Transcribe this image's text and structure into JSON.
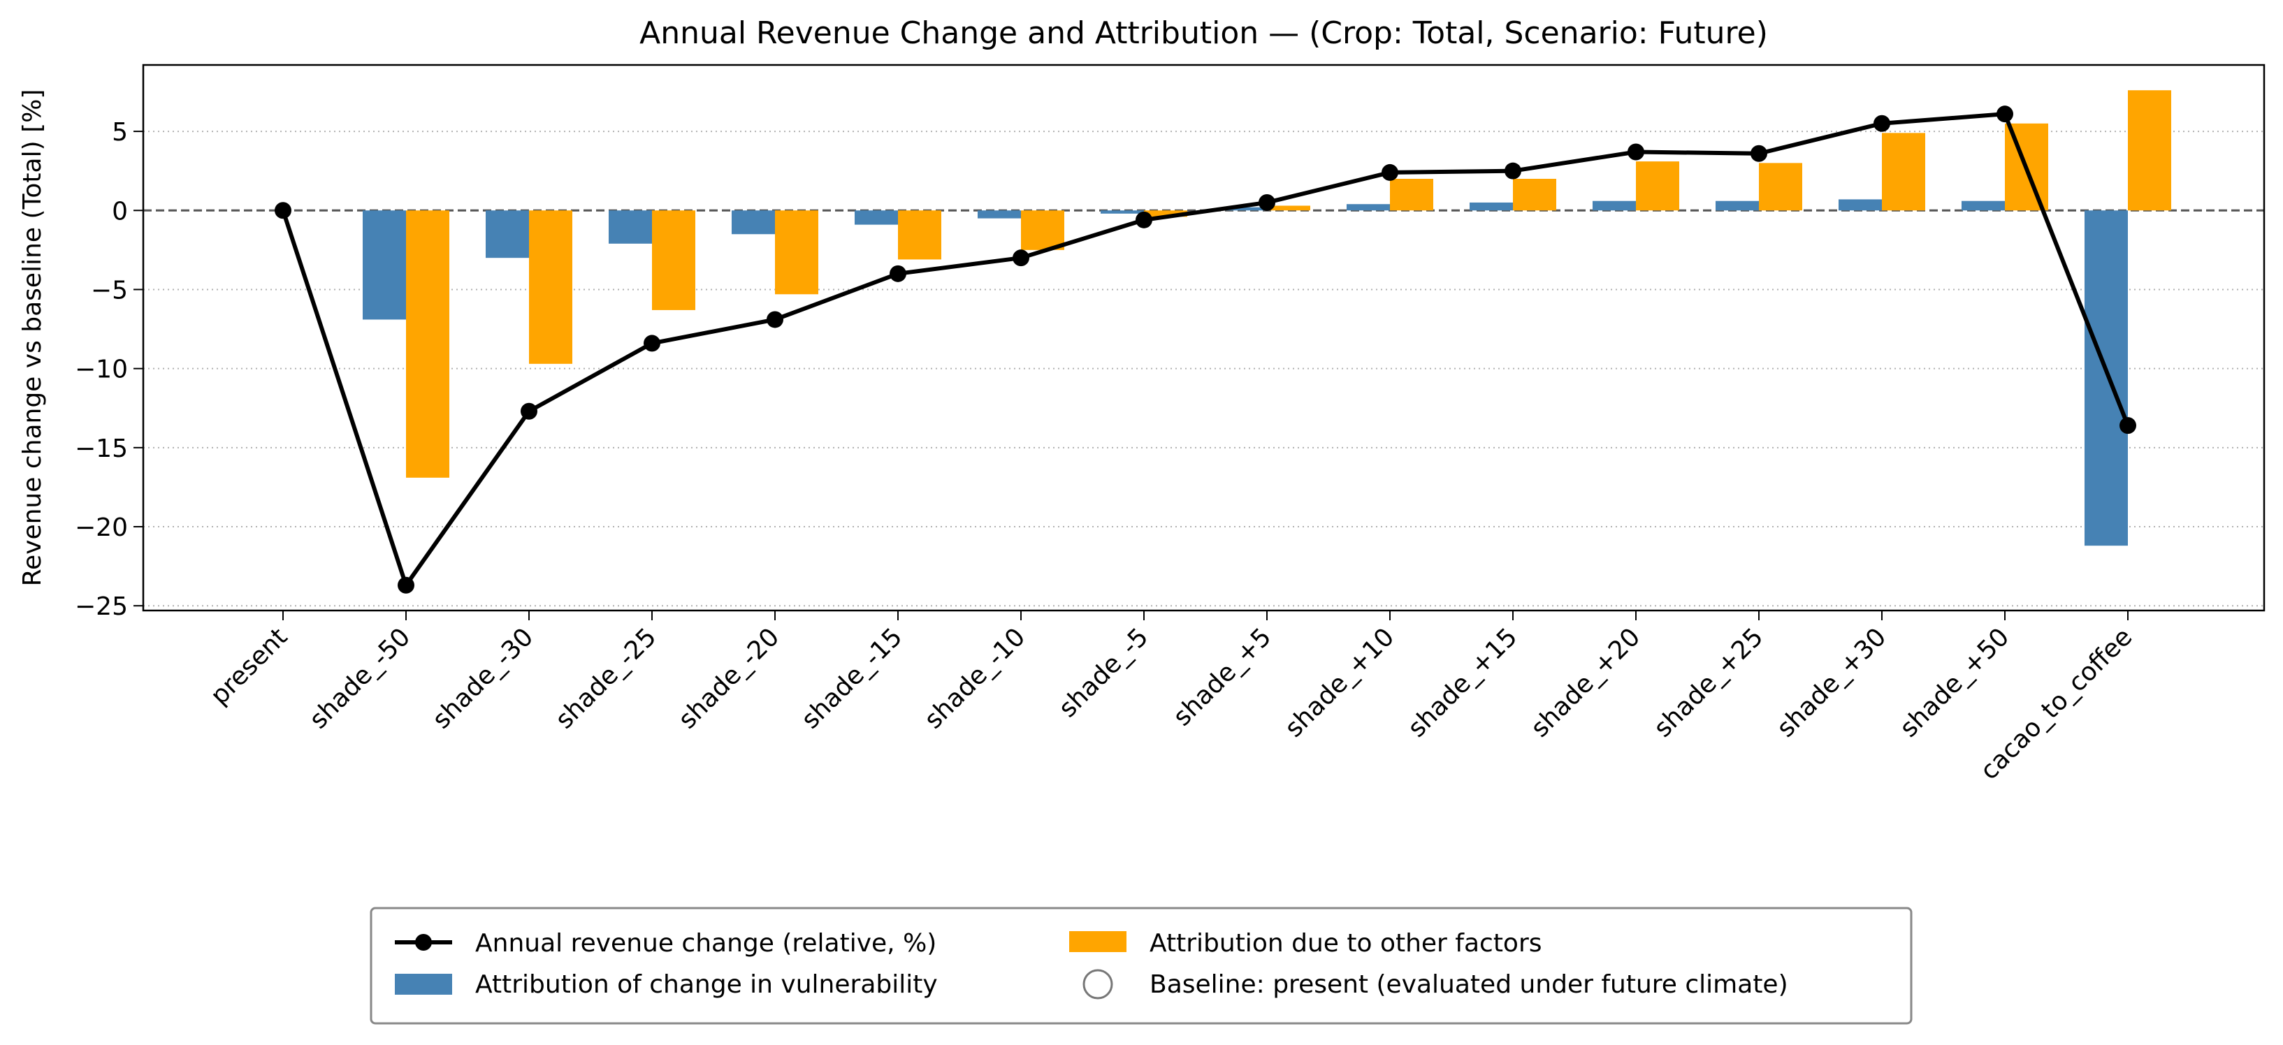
{
  "chart_data": {
    "type": "bar",
    "title": "Annual Revenue Change and Attribution — (Crop: Total, Scenario: Future)",
    "xlabel": "",
    "ylabel": "Revenue change vs baseline (Total) [%]",
    "ylim": [
      -25.3,
      9.2
    ],
    "yticks": [
      5,
      0,
      -5,
      -10,
      -15,
      -20,
      -25
    ],
    "grid": "y-dotted",
    "zero_line": "dashed",
    "legend_position": "below",
    "categories": [
      "present",
      "shade_-50",
      "shade_-30",
      "shade_-25",
      "shade_-20",
      "shade_-15",
      "shade_-10",
      "shade_-5",
      "shade_+5",
      "shade_+10",
      "shade_+15",
      "shade_+20",
      "shade_+25",
      "shade_+30",
      "shade_+50",
      "cacao_to_coffee"
    ],
    "series": [
      {
        "name": "Annual revenue change (relative, %)",
        "kind": "line",
        "color": "#000000",
        "values": [
          0,
          -23.7,
          -12.7,
          -8.4,
          -6.9,
          -4.0,
          -3.0,
          -0.6,
          0.5,
          2.4,
          2.5,
          3.7,
          3.6,
          5.5,
          6.1,
          -13.6
        ]
      },
      {
        "name": "Attribution of change in vulnerability",
        "kind": "bar",
        "color": "#4682b4",
        "values": [
          null,
          -6.9,
          -3.0,
          -2.1,
          -1.5,
          -0.9,
          -0.5,
          -0.2,
          0.2,
          0.4,
          0.5,
          0.6,
          0.6,
          0.7,
          0.6,
          -21.2
        ]
      },
      {
        "name": "Attribution due to other factors",
        "kind": "bar",
        "color": "#ffa500",
        "values": [
          null,
          -16.9,
          -9.7,
          -6.3,
          -5.3,
          -3.1,
          -2.5,
          -0.4,
          0.3,
          2.0,
          2.0,
          3.1,
          3.0,
          4.9,
          5.5,
          7.6
        ]
      }
    ],
    "baseline_legend": "Baseline: present (evaluated under future climate)"
  }
}
